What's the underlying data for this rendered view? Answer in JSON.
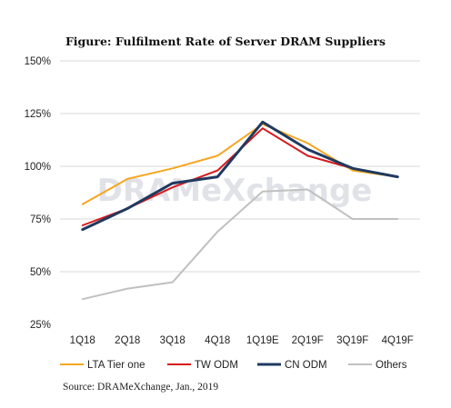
{
  "chart_data": {
    "type": "line",
    "title": "Figure: Fulfilment Rate of Server DRAM Suppliers",
    "categories": [
      "1Q18",
      "2Q18",
      "3Q18",
      "4Q18",
      "1Q19E",
      "2Q19F",
      "3Q19F",
      "4Q19F"
    ],
    "y_ticks": [
      "25%",
      "50%",
      "75%",
      "100%",
      "125%",
      "150%"
    ],
    "ylim": [
      25,
      150
    ],
    "grid": true,
    "legend_position": "bottom",
    "series": [
      {
        "name": "LTA Tier one",
        "color": "#f5a623",
        "values": [
          82,
          94,
          99,
          105,
          120,
          111,
          98,
          95
        ]
      },
      {
        "name": "TW ODM",
        "color": "#d7191c",
        "values": [
          72,
          80,
          90,
          98,
          118,
          105,
          99,
          95
        ]
      },
      {
        "name": "CN ODM",
        "color": "#1f3a60",
        "values": [
          70,
          80,
          92,
          95,
          121,
          108,
          99,
          95
        ]
      },
      {
        "name": "Others",
        "color": "#c0c0c0",
        "values": [
          37,
          42,
          45,
          69,
          88,
          89,
          75,
          75
        ]
      }
    ],
    "source": "Source: DRAMeXchange, Jan., 2019",
    "watermark": "DRAMeXchange"
  }
}
